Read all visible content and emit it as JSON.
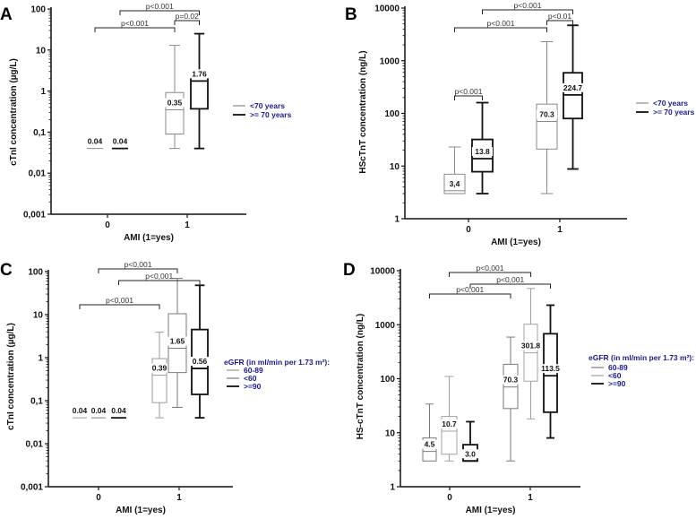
{
  "chart_data": [
    {
      "panel": "A",
      "type": "box",
      "scale": "log",
      "ylabel": "cTnI concentration (µg/L)",
      "xlabel": "AMI (1=yes)",
      "ylim": [
        0.001,
        100
      ],
      "yticks": [
        {
          "v": 100,
          "t": "100"
        },
        {
          "v": 10,
          "t": "10"
        },
        {
          "v": 1,
          "t": "1"
        },
        {
          "v": 0.1,
          "t": "0,1"
        },
        {
          "v": 0.01,
          "t": "0,01"
        },
        {
          "v": 0.001,
          "t": "0,001"
        }
      ],
      "xticks": [
        "0",
        "1"
      ],
      "legend_title": "",
      "series": [
        {
          "name": "<70 years",
          "color": "#8a8a8a"
        },
        {
          "name": ">= 70 years",
          "color": "#111111"
        }
      ],
      "boxes": [
        {
          "x": "0",
          "s": 0,
          "min": 0.04,
          "q1": 0.04,
          "median": 0.04,
          "q3": 0.04,
          "max": 0.04,
          "label": "0.04"
        },
        {
          "x": "0",
          "s": 1,
          "min": 0.04,
          "q1": 0.04,
          "median": 0.04,
          "q3": 0.04,
          "max": 0.04,
          "label": "0.04"
        },
        {
          "x": "1",
          "s": 0,
          "min": 0.04,
          "q1": 0.09,
          "median": 0.35,
          "q3": 0.92,
          "max": 13,
          "label": "0.35"
        },
        {
          "x": "1",
          "s": 1,
          "min": 0.04,
          "q1": 0.37,
          "median": 1.76,
          "q3": 2.9,
          "max": 25,
          "label": "1.76"
        }
      ],
      "comparisons": [
        {
          "a": 0,
          "b": 2,
          "p": "p<0.001"
        },
        {
          "a": 1,
          "b": 3,
          "p": "p<0.001"
        },
        {
          "a": 2,
          "b": 3,
          "p": "p=0.02"
        }
      ],
      "p_color": "#333333"
    },
    {
      "panel": "B",
      "type": "box",
      "scale": "log",
      "ylabel": "HScTnT concentration (ng/L)",
      "xlabel": "AMI (1=yes)",
      "ylim": [
        1,
        10000
      ],
      "yticks": [
        {
          "v": 10000,
          "t": "10000"
        },
        {
          "v": 1000,
          "t": "1000"
        },
        {
          "v": 100,
          "t": "100"
        },
        {
          "v": 10,
          "t": "10"
        },
        {
          "v": 1,
          "t": "1"
        }
      ],
      "xticks": [
        "0",
        "1"
      ],
      "legend_title": "",
      "series": [
        {
          "name": "<70 years",
          "color": "#8a8a8a"
        },
        {
          "name": ">= 70 years",
          "color": "#111111"
        }
      ],
      "boxes": [
        {
          "x": "0",
          "s": 0,
          "min": 3,
          "q1": 3,
          "median": 3.4,
          "q3": 7,
          "max": 23,
          "label": "3,4"
        },
        {
          "x": "0",
          "s": 1,
          "min": 3,
          "q1": 7.8,
          "median": 13.8,
          "q3": 32,
          "max": 160,
          "label": "13.8"
        },
        {
          "x": "1",
          "s": 0,
          "min": 3,
          "q1": 21,
          "median": 70.3,
          "q3": 150,
          "max": 2300,
          "label": "70.3"
        },
        {
          "x": "1",
          "s": 1,
          "min": 8.8,
          "q1": 80,
          "median": 224.7,
          "q3": 590,
          "max": 4700,
          "label": "224.7"
        }
      ],
      "comparisons": [
        {
          "a": 0,
          "b": 2,
          "p": "p<0.001"
        },
        {
          "a": 1,
          "b": 3,
          "p": "p<0.001"
        },
        {
          "a": 2,
          "b": 3,
          "p": "p<0.01"
        },
        {
          "a": 0,
          "b": 1,
          "p": "p<0.001"
        }
      ],
      "p_color": "#333333"
    },
    {
      "panel": "C",
      "type": "box",
      "scale": "log",
      "ylabel": "cTnI concentration (µg/L)",
      "xlabel": "AMI (1=yes)",
      "ylim": [
        0.001,
        100
      ],
      "yticks": [
        {
          "v": 100,
          "t": "100"
        },
        {
          "v": 10,
          "t": "10"
        },
        {
          "v": 1,
          "t": "1"
        },
        {
          "v": 0.1,
          "t": "0,1"
        },
        {
          "v": 0.01,
          "t": "0,01"
        },
        {
          "v": 0.001,
          "t": "0,001"
        }
      ],
      "xticks": [
        "0",
        "1"
      ],
      "legend_title": "eGFR (in ml/min per 1.73 m²):",
      "series": [
        {
          "name": "60-89",
          "color": "#9a9a9a"
        },
        {
          "name": "<60",
          "color": "#7a7a7a"
        },
        {
          "name": ">=90",
          "color": "#111111"
        }
      ],
      "boxes": [
        {
          "x": "0",
          "s": 0,
          "min": 0.04,
          "q1": 0.04,
          "median": 0.04,
          "q3": 0.04,
          "max": 0.04,
          "label": "0.04"
        },
        {
          "x": "0",
          "s": 1,
          "min": 0.04,
          "q1": 0.04,
          "median": 0.04,
          "q3": 0.04,
          "max": 0.04,
          "label": "0.04"
        },
        {
          "x": "0",
          "s": 2,
          "min": 0.04,
          "q1": 0.04,
          "median": 0.04,
          "q3": 0.04,
          "max": 0.04,
          "label": "0.04"
        },
        {
          "x": "1",
          "s": 0,
          "min": 0.04,
          "q1": 0.09,
          "median": 0.39,
          "q3": 0.95,
          "max": 3.9,
          "label": "0.39"
        },
        {
          "x": "1",
          "s": 1,
          "min": 0.07,
          "q1": 0.45,
          "median": 1.65,
          "q3": 10.5,
          "max": 70,
          "label": "1.65"
        },
        {
          "x": "1",
          "s": 2,
          "min": 0.04,
          "q1": 0.14,
          "median": 0.56,
          "q3": 4.5,
          "max": 48,
          "label": "0.56"
        }
      ],
      "comparisons": [
        {
          "a": 0,
          "b": 3,
          "p": "p<0,001"
        },
        {
          "a": 1,
          "b": 4,
          "p": "p<0,001"
        },
        {
          "a": 2,
          "b": 5,
          "p": "p<0,001"
        }
      ],
      "p_color": "#3a3aa8"
    },
    {
      "panel": "D",
      "type": "box",
      "scale": "log",
      "ylabel": "HS-cTnT concentration (ng/L)",
      "xlabel": "AMI (1=yes)",
      "ylim": [
        1,
        10000
      ],
      "yticks": [
        {
          "v": 10000,
          "t": "10000"
        },
        {
          "v": 1000,
          "t": "1000"
        },
        {
          "v": 100,
          "t": "100"
        },
        {
          "v": 10,
          "t": "10"
        },
        {
          "v": 1,
          "t": "1"
        }
      ],
      "xticks": [
        "0",
        "1"
      ],
      "legend_title": "eGFR (in ml/min per 1.73 m²):",
      "series": [
        {
          "name": "60-89",
          "color": "#7a7a7a"
        },
        {
          "name": "<60",
          "color": "#a0a0a0"
        },
        {
          "name": ">=90",
          "color": "#111111"
        }
      ],
      "boxes": [
        {
          "x": "0",
          "s": 0,
          "min": 3,
          "q1": 3,
          "median": 4.5,
          "q3": 8,
          "max": 34,
          "label": "4.5"
        },
        {
          "x": "0",
          "s": 1,
          "min": 3,
          "q1": 4,
          "median": 10.7,
          "q3": 20,
          "max": 110,
          "label": "10.7"
        },
        {
          "x": "0",
          "s": 2,
          "min": 3,
          "q1": 3,
          "median": 3.0,
          "q3": 6,
          "max": 16,
          "label": "3.0"
        },
        {
          "x": "1",
          "s": 0,
          "min": 3,
          "q1": 28,
          "median": 70.3,
          "q3": 185,
          "max": 590,
          "label": "70.3"
        },
        {
          "x": "1",
          "s": 1,
          "min": 18,
          "q1": 90,
          "median": 301.8,
          "q3": 1020,
          "max": 4700,
          "label": "301.8"
        },
        {
          "x": "1",
          "s": 2,
          "min": 8,
          "q1": 24,
          "median": 113.5,
          "q3": 680,
          "max": 2300,
          "label": "113.5"
        }
      ],
      "comparisons": [
        {
          "a": 0,
          "b": 3,
          "p": "p<0,001"
        },
        {
          "a": 1,
          "b": 4,
          "p": "p<0,001"
        },
        {
          "a": 2,
          "b": 5,
          "p": "p<0,001"
        }
      ],
      "p_color": "#3a3aa8"
    }
  ]
}
